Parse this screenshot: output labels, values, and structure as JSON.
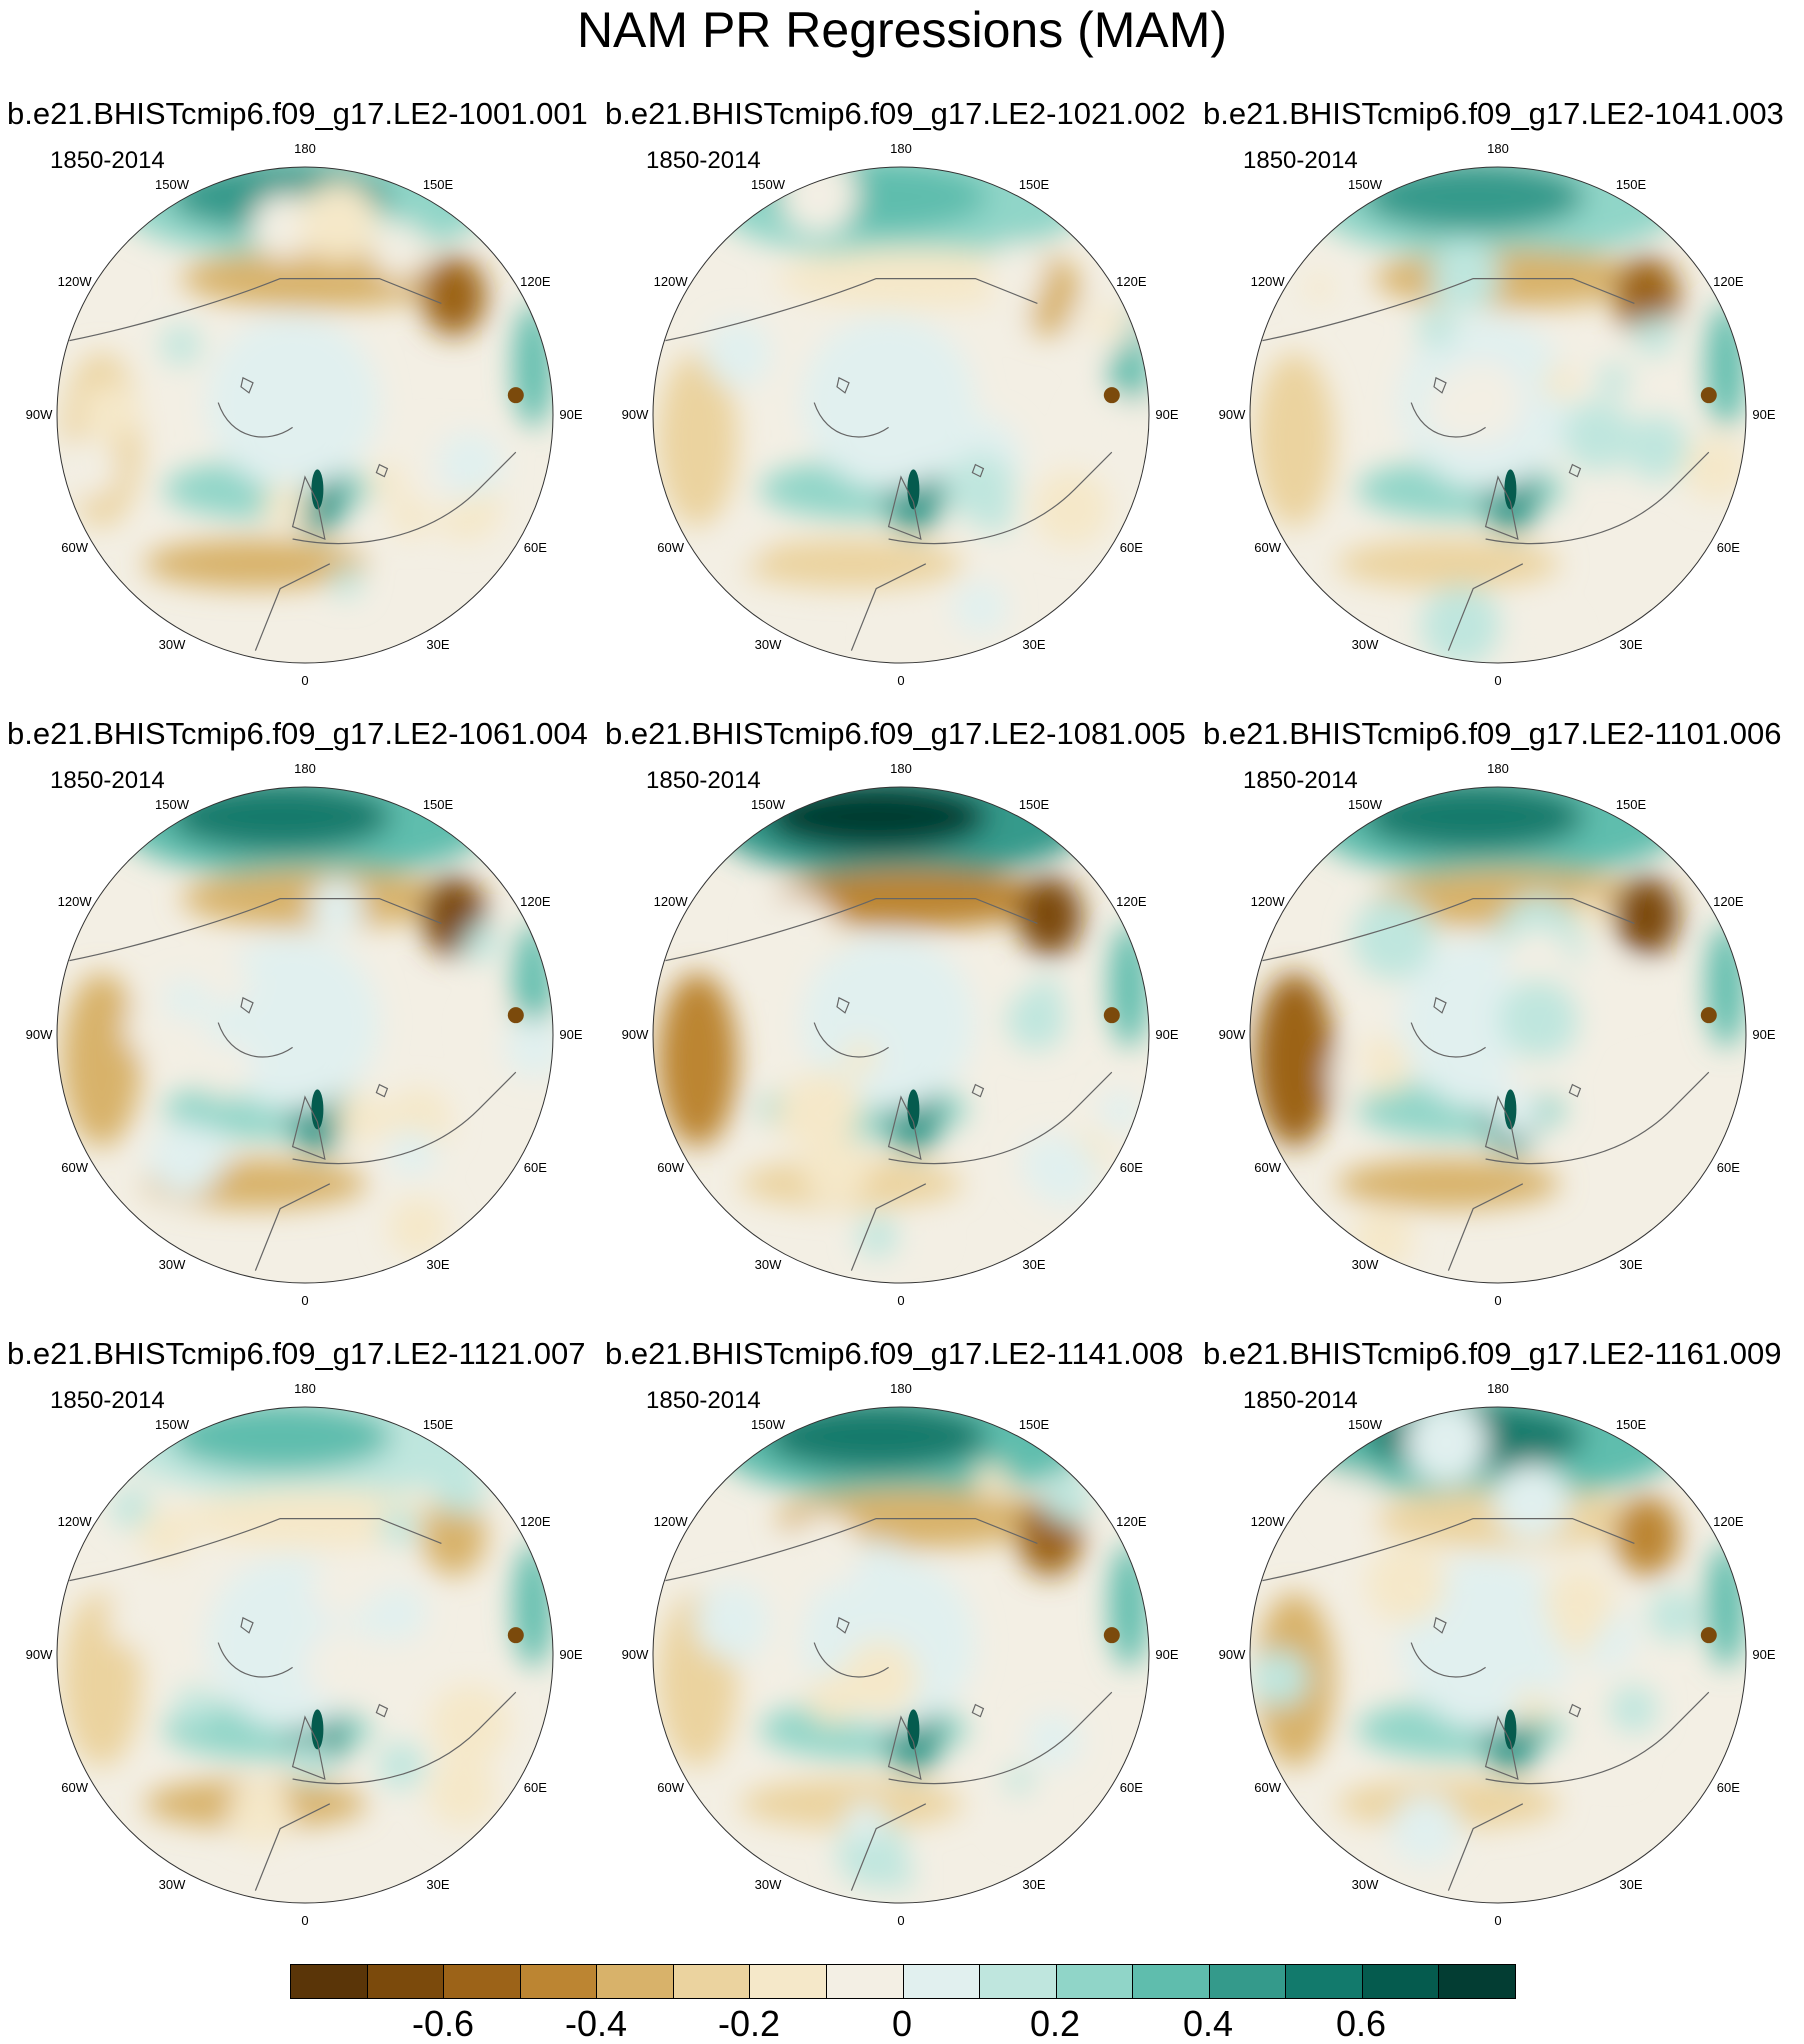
{
  "title": "NAM PR Regressions (MAM)",
  "colors": {
    "levels": [
      "#5a3508",
      "#7b4a0c",
      "#9c6318",
      "#bc8532",
      "#d8b26a",
      "#ebd39f",
      "#f5e8c9",
      "#f3efe4",
      "#e1f0ef",
      "#bfe6de",
      "#90d5c8",
      "#5fbdad",
      "#349a8b",
      "#127a6c",
      "#055b4e",
      "#033d33"
    ]
  },
  "panels": [
    {
      "name": "b.e21.BHISTcmip6.f09_g17.LE2-1001.001",
      "period": "1850-2014"
    },
    {
      "name": "b.e21.BHISTcmip6.f09_g17.LE2-1021.002",
      "period": "1850-2014"
    },
    {
      "name": "b.e21.BHISTcmip6.f09_g17.LE2-1041.003",
      "period": "1850-2014"
    },
    {
      "name": "b.e21.BHISTcmip6.f09_g17.LE2-1061.004",
      "period": "1850-2014"
    },
    {
      "name": "b.e21.BHISTcmip6.f09_g17.LE2-1081.005",
      "period": "1850-2014"
    },
    {
      "name": "b.e21.BHISTcmip6.f09_g17.LE2-1101.006",
      "period": "1850-2014"
    },
    {
      "name": "b.e21.BHISTcmip6.f09_g17.LE2-1121.007",
      "period": "1850-2014"
    },
    {
      "name": "b.e21.BHISTcmip6.f09_g17.LE2-1141.008",
      "period": "1850-2014"
    },
    {
      "name": "b.e21.BHISTcmip6.f09_g17.LE2-1161.009",
      "period": "1850-2014"
    }
  ],
  "lon_labels": [
    "180",
    "150E",
    "120E",
    "90E",
    "60E",
    "30E",
    "0",
    "30W",
    "60W",
    "90W",
    "120W",
    "150W"
  ],
  "chart_data": {
    "type": "heatmap",
    "title": "NAM PR Regressions (MAM)",
    "projection": "north-polar-stereographic",
    "panel_count": 9,
    "colorbar": {
      "orientation": "horizontal",
      "placement": "bottom",
      "levels": [
        -0.7,
        -0.6,
        -0.5,
        -0.4,
        -0.3,
        -0.2,
        -0.1,
        0,
        0.1,
        0.2,
        0.3,
        0.4,
        0.5,
        0.6,
        0.7
      ],
      "tick_labels": [
        "-0.6",
        "-0.4",
        "-0.2",
        "0",
        "0.2",
        "0.4",
        "0.6"
      ],
      "tick_values": [
        -0.6,
        -0.4,
        -0.2,
        0,
        0.2,
        0.4,
        0.6
      ]
    }
  }
}
